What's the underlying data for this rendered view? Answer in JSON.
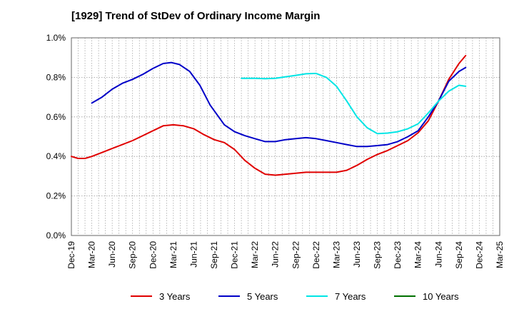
{
  "chart_data": {
    "type": "line",
    "title": "[1929]  Trend of StDev of Ordinary Income Margin",
    "xlabel": "",
    "ylabel": "",
    "ylim": [
      0,
      1.0
    ],
    "yticks": [
      "0.0%",
      "0.2%",
      "0.4%",
      "0.6%",
      "0.8%",
      "1.0%"
    ],
    "ytick_values": [
      0,
      0.2,
      0.4,
      0.6,
      0.8,
      1.0
    ],
    "x_categories": [
      "Dec-19",
      "Mar-20",
      "Jun-20",
      "Sep-20",
      "Dec-20",
      "Mar-21",
      "Jun-21",
      "Sep-21",
      "Dec-21",
      "Mar-22",
      "Jun-22",
      "Sep-22",
      "Dec-22",
      "Mar-23",
      "Jun-23",
      "Sep-23",
      "Dec-23",
      "Mar-24",
      "Jun-24",
      "Sep-24",
      "Dec-24",
      "Mar-25"
    ],
    "grid": true,
    "legend_position": "bottom",
    "series": [
      {
        "name": "3 Years",
        "color": "#e00000",
        "points": [
          [
            0,
            0.4
          ],
          [
            0.33,
            0.39
          ],
          [
            0.67,
            0.39
          ],
          [
            1,
            0.4
          ],
          [
            1.5,
            0.42
          ],
          [
            2,
            0.44
          ],
          [
            2.5,
            0.46
          ],
          [
            3,
            0.48
          ],
          [
            3.5,
            0.505
          ],
          [
            4,
            0.53
          ],
          [
            4.5,
            0.555
          ],
          [
            5,
            0.56
          ],
          [
            5.5,
            0.555
          ],
          [
            6,
            0.54
          ],
          [
            6.5,
            0.51
          ],
          [
            7,
            0.485
          ],
          [
            7.5,
            0.47
          ],
          [
            8,
            0.435
          ],
          [
            8.5,
            0.38
          ],
          [
            9,
            0.34
          ],
          [
            9.5,
            0.31
          ],
          [
            10,
            0.305
          ],
          [
            10.5,
            0.31
          ],
          [
            11,
            0.315
          ],
          [
            11.5,
            0.32
          ],
          [
            12,
            0.32
          ],
          [
            12.5,
            0.32
          ],
          [
            13,
            0.32
          ],
          [
            13.5,
            0.33
          ],
          [
            14,
            0.355
          ],
          [
            14.5,
            0.385
          ],
          [
            15,
            0.41
          ],
          [
            15.5,
            0.43
          ],
          [
            16,
            0.455
          ],
          [
            16.5,
            0.48
          ],
          [
            17,
            0.52
          ],
          [
            17.5,
            0.58
          ],
          [
            18,
            0.68
          ],
          [
            18.5,
            0.79
          ],
          [
            19,
            0.87
          ],
          [
            19.33,
            0.91
          ]
        ]
      },
      {
        "name": "5 Years",
        "color": "#0000c8",
        "points": [
          [
            1,
            0.67
          ],
          [
            1.5,
            0.7
          ],
          [
            2,
            0.74
          ],
          [
            2.5,
            0.77
          ],
          [
            3,
            0.79
          ],
          [
            3.5,
            0.815
          ],
          [
            4,
            0.845
          ],
          [
            4.5,
            0.87
          ],
          [
            4.9,
            0.875
          ],
          [
            5.3,
            0.865
          ],
          [
            5.8,
            0.83
          ],
          [
            6.3,
            0.76
          ],
          [
            6.8,
            0.66
          ],
          [
            7.5,
            0.56
          ],
          [
            8,
            0.525
          ],
          [
            8.5,
            0.505
          ],
          [
            9,
            0.49
          ],
          [
            9.5,
            0.475
          ],
          [
            10,
            0.475
          ],
          [
            10.5,
            0.485
          ],
          [
            11,
            0.49
          ],
          [
            11.5,
            0.495
          ],
          [
            12,
            0.49
          ],
          [
            12.5,
            0.48
          ],
          [
            13,
            0.47
          ],
          [
            13.5,
            0.46
          ],
          [
            14,
            0.45
          ],
          [
            14.5,
            0.45
          ],
          [
            15,
            0.455
          ],
          [
            15.5,
            0.46
          ],
          [
            16,
            0.475
          ],
          [
            16.5,
            0.5
          ],
          [
            17,
            0.53
          ],
          [
            17.5,
            0.6
          ],
          [
            18,
            0.68
          ],
          [
            18.5,
            0.78
          ],
          [
            19,
            0.83
          ],
          [
            19.33,
            0.85
          ]
        ]
      },
      {
        "name": "7 Years",
        "color": "#00e5e5",
        "points": [
          [
            8.33,
            0.795
          ],
          [
            9,
            0.795
          ],
          [
            9.5,
            0.793
          ],
          [
            10,
            0.795
          ],
          [
            10.5,
            0.803
          ],
          [
            11,
            0.81
          ],
          [
            11.5,
            0.818
          ],
          [
            12,
            0.82
          ],
          [
            12.5,
            0.8
          ],
          [
            13,
            0.755
          ],
          [
            13.5,
            0.68
          ],
          [
            14,
            0.6
          ],
          [
            14.5,
            0.545
          ],
          [
            15,
            0.515
          ],
          [
            15.5,
            0.518
          ],
          [
            16,
            0.525
          ],
          [
            16.5,
            0.54
          ],
          [
            17,
            0.565
          ],
          [
            17.5,
            0.62
          ],
          [
            18,
            0.68
          ],
          [
            18.5,
            0.73
          ],
          [
            19,
            0.76
          ],
          [
            19.33,
            0.755
          ]
        ]
      },
      {
        "name": "10 Years",
        "color": "#007000",
        "points": []
      }
    ]
  }
}
